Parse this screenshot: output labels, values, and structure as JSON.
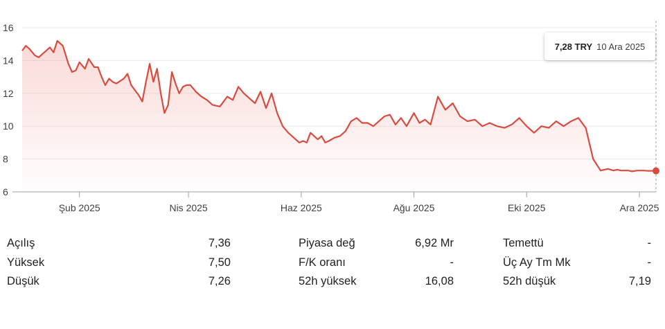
{
  "chart_data": {
    "type": "area",
    "ylim": [
      6,
      16
    ],
    "yticks": [
      6,
      8,
      10,
      12,
      14,
      16
    ],
    "x_start": "2025-01-01",
    "x_end": "2025-12-10",
    "xticks": [
      {
        "date": "2025-02-01",
        "label": "Şub 2025"
      },
      {
        "date": "2025-04-01",
        "label": "Nis 2025"
      },
      {
        "date": "2025-06-01",
        "label": "Haz 2025"
      },
      {
        "date": "2025-08-01",
        "label": "Ağu 2025"
      },
      {
        "date": "2025-10-01",
        "label": "Eki 2025"
      },
      {
        "date": "2025-12-01",
        "label": "Ara 2025"
      }
    ],
    "grid": true,
    "line_color": "#d84b3f",
    "x": [
      "2025-01-01",
      "2025-01-03",
      "2025-01-05",
      "2025-01-08",
      "2025-01-10",
      "2025-01-13",
      "2025-01-16",
      "2025-01-18",
      "2025-01-20",
      "2025-01-23",
      "2025-01-26",
      "2025-01-28",
      "2025-01-30",
      "2025-02-01",
      "2025-02-04",
      "2025-02-06",
      "2025-02-09",
      "2025-02-11",
      "2025-02-13",
      "2025-02-15",
      "2025-02-17",
      "2025-02-19",
      "2025-02-21",
      "2025-02-25",
      "2025-02-27",
      "2025-03-01",
      "2025-03-03",
      "2025-03-05",
      "2025-03-07",
      "2025-03-09",
      "2025-03-11",
      "2025-03-13",
      "2025-03-15",
      "2025-03-17",
      "2025-03-19",
      "2025-03-21",
      "2025-03-23",
      "2025-03-25",
      "2025-03-27",
      "2025-03-29",
      "2025-03-31",
      "2025-04-02",
      "2025-04-05",
      "2025-04-08",
      "2025-04-11",
      "2025-04-14",
      "2025-04-18",
      "2025-04-22",
      "2025-04-25",
      "2025-04-28",
      "2025-05-01",
      "2025-05-04",
      "2025-05-07",
      "2025-05-10",
      "2025-05-13",
      "2025-05-16",
      "2025-05-19",
      "2025-05-22",
      "2025-05-25",
      "2025-05-28",
      "2025-05-31",
      "2025-06-02",
      "2025-06-04",
      "2025-06-06",
      "2025-06-08",
      "2025-06-10",
      "2025-06-12",
      "2025-06-14",
      "2025-06-16",
      "2025-06-19",
      "2025-06-22",
      "2025-06-25",
      "2025-06-28",
      "2025-07-01",
      "2025-07-04",
      "2025-07-07",
      "2025-07-10",
      "2025-07-13",
      "2025-07-16",
      "2025-07-19",
      "2025-07-22",
      "2025-07-25",
      "2025-07-28",
      "2025-08-01",
      "2025-08-04",
      "2025-08-07",
      "2025-08-10",
      "2025-08-14",
      "2025-08-18",
      "2025-08-22",
      "2025-08-26",
      "2025-08-30",
      "2025-09-03",
      "2025-09-07",
      "2025-09-11",
      "2025-09-15",
      "2025-09-19",
      "2025-09-23",
      "2025-09-27",
      "2025-10-01",
      "2025-10-05",
      "2025-10-09",
      "2025-10-13",
      "2025-10-17",
      "2025-10-21",
      "2025-10-25",
      "2025-10-29",
      "2025-11-02",
      "2025-11-06",
      "2025-11-10",
      "2025-11-14",
      "2025-11-17",
      "2025-11-19",
      "2025-11-21",
      "2025-11-23",
      "2025-11-25",
      "2025-11-27",
      "2025-11-30",
      "2025-12-03",
      "2025-12-06",
      "2025-12-08",
      "2025-12-10"
    ],
    "y": [
      14.6,
      14.9,
      14.7,
      14.3,
      14.2,
      14.5,
      14.8,
      14.5,
      15.2,
      14.9,
      13.8,
      13.3,
      13.4,
      13.9,
      13.5,
      14.1,
      13.6,
      13.6,
      13.0,
      12.5,
      12.9,
      12.7,
      12.6,
      12.9,
      13.2,
      12.5,
      12.2,
      11.9,
      11.5,
      12.7,
      13.8,
      12.7,
      13.5,
      12.0,
      10.8,
      11.3,
      13.3,
      12.6,
      12.0,
      12.4,
      12.5,
      12.5,
      12.1,
      11.8,
      11.6,
      11.3,
      11.2,
      11.8,
      11.6,
      12.4,
      12.0,
      11.7,
      11.4,
      12.1,
      11.1,
      12.0,
      10.8,
      10.0,
      9.6,
      9.3,
      9.0,
      9.1,
      9.0,
      9.6,
      9.4,
      9.2,
      9.4,
      9.0,
      9.1,
      9.3,
      9.4,
      9.7,
      10.3,
      10.5,
      10.2,
      10.2,
      10.0,
      10.3,
      10.6,
      10.7,
      10.1,
      10.5,
      10.0,
      10.8,
      10.2,
      10.4,
      10.1,
      11.8,
      11.0,
      11.4,
      10.6,
      10.3,
      10.4,
      10.0,
      10.2,
      10.0,
      9.9,
      10.1,
      10.5,
      10.0,
      9.6,
      10.0,
      9.9,
      10.3,
      10.0,
      10.3,
      10.5,
      9.9,
      8.0,
      7.3,
      7.4,
      7.3,
      7.35,
      7.3,
      7.3,
      7.3,
      7.25,
      7.3,
      7.3,
      7.28,
      7.28,
      7.28
    ]
  },
  "tooltip": {
    "value": "7,28 TRY",
    "date": "10 Ara 2025"
  },
  "stats": [
    [
      {
        "label": "Açılış",
        "value": "7,36"
      },
      {
        "label": "Piyasa değ",
        "value": "6,92 Mr"
      },
      {
        "label": "Temettü",
        "value": "-"
      }
    ],
    [
      {
        "label": "Yüksek",
        "value": "7,50"
      },
      {
        "label": "F/K oranı",
        "value": "-"
      },
      {
        "label": "Üç Ay Tm Mk",
        "value": "-"
      }
    ],
    [
      {
        "label": "Düşük",
        "value": "7,26"
      },
      {
        "label": "52h yüksek",
        "value": "16,08"
      },
      {
        "label": "52h düşük",
        "value": "7,19"
      }
    ]
  ]
}
